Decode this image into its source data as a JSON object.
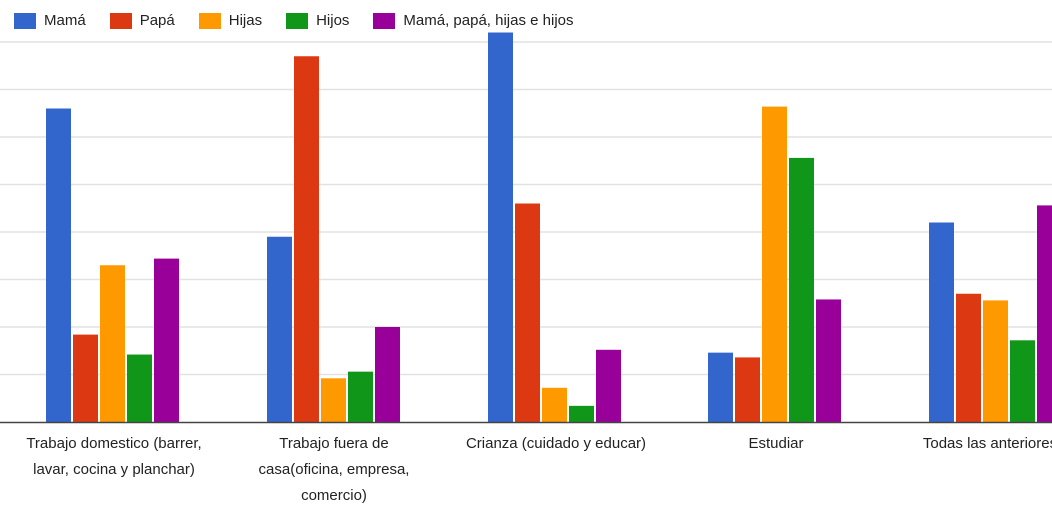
{
  "chart_data": {
    "type": "bar",
    "categories": [
      "Trabajo domestico (barrer, lavar, cocina y planchar)",
      "Trabajo fuera de casa(oficina, empresa, comercio)",
      "Crianza (cuidado y educar)",
      "Estudiar",
      "Todas las anteriores"
    ],
    "category_label_lines": [
      [
        "Trabajo domestico (barrer,",
        "lavar, cocina y planchar)"
      ],
      [
        "Trabajo fuera de",
        "casa(oficina, empresa,",
        "comercio)"
      ],
      [
        "Crianza (cuidado y educar)"
      ],
      [
        "Estudiar"
      ],
      [
        "Todas las anteriores"
      ]
    ],
    "series": [
      {
        "name": "Mamá",
        "color": "#3366cc",
        "values": [
          33,
          19.5,
          41,
          7.3,
          21
        ]
      },
      {
        "name": "Papá",
        "color": "#dc3912",
        "values": [
          9.2,
          38.5,
          23,
          6.8,
          13.5
        ]
      },
      {
        "name": "Hijas",
        "color": "#ff9900",
        "values": [
          16.5,
          4.6,
          3.6,
          33.2,
          12.8
        ]
      },
      {
        "name": "Hijos",
        "color": "#109618",
        "values": [
          7.1,
          5.3,
          1.7,
          27.8,
          8.6
        ]
      },
      {
        "name": "Mamá, papá, hijas e hijos",
        "color": "#990099",
        "values": [
          17.2,
          10,
          7.6,
          12.9,
          22.8
        ]
      }
    ],
    "ylim": [
      0,
      40
    ],
    "gridlines": [
      5,
      10,
      15,
      20,
      25,
      30,
      35,
      40
    ],
    "grid": true,
    "legend_position": "top-left",
    "title": "",
    "xlabel": "",
    "ylabel": ""
  }
}
